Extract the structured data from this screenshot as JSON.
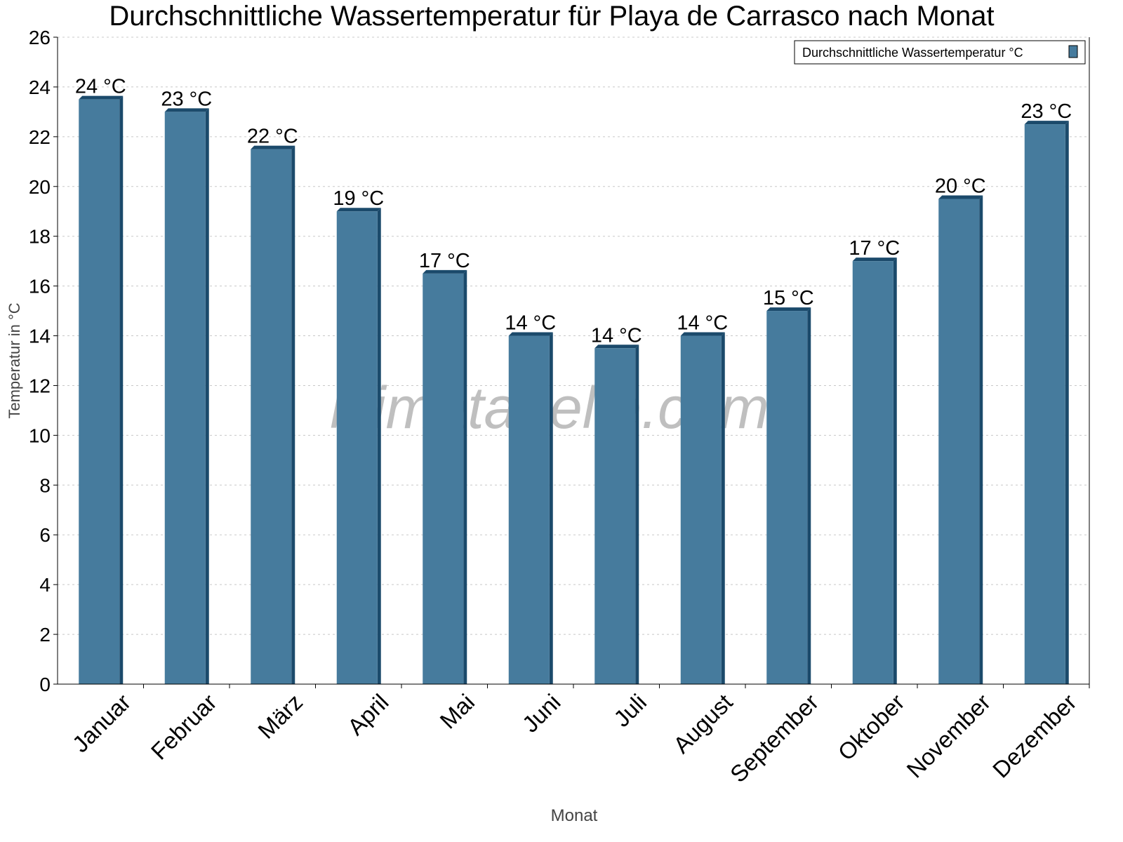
{
  "chart_data": {
    "type": "bar",
    "title": "Durchschnittliche Wassertemperatur für Playa de Carrasco nach Monat",
    "xlabel": "Monat",
    "ylabel": "Temperatur in °C",
    "ylim": [
      0,
      26
    ],
    "yticks": [
      0,
      2,
      4,
      6,
      8,
      10,
      12,
      14,
      16,
      18,
      20,
      22,
      24,
      26
    ],
    "grid": true,
    "legend_position": "top-right",
    "watermark": "klimatabelle.com",
    "categories": [
      "Januar",
      "Februar",
      "März",
      "April",
      "Mai",
      "Juni",
      "Juli",
      "August",
      "September",
      "Oktober",
      "November",
      "Dezember"
    ],
    "series": [
      {
        "name": "Durchschnittliche Wassertemperatur °C",
        "color": "#467b9d",
        "edge_color": "#1b4a6b",
        "values": [
          23.5,
          23,
          21.5,
          19,
          16.5,
          14,
          13.5,
          14,
          15,
          17,
          19.5,
          22.5
        ],
        "labels": [
          "24 °C",
          "23 °C",
          "22 °C",
          "19 °C",
          "17 °C",
          "14 °C",
          "14 °C",
          "14 °C",
          "15 °C",
          "17 °C",
          "20 °C",
          "23 °C"
        ]
      }
    ]
  }
}
